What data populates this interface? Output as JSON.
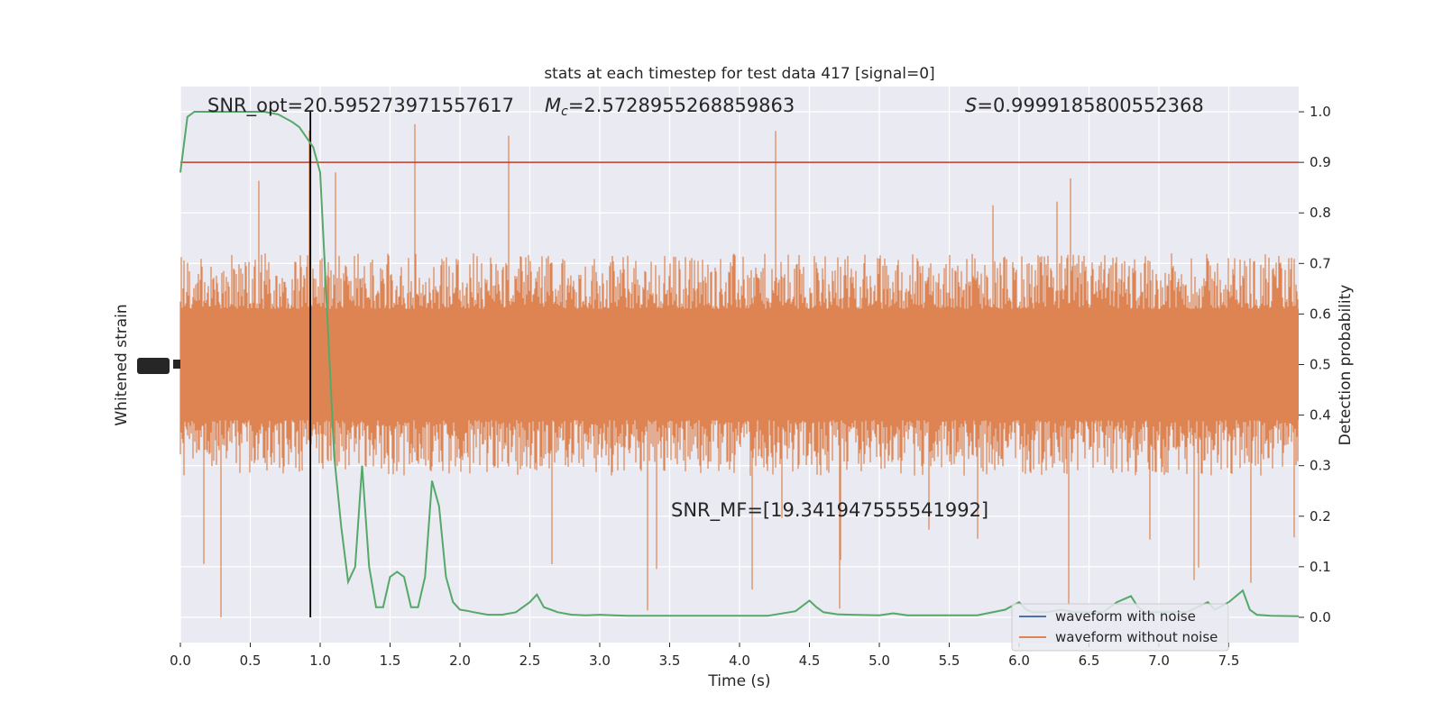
{
  "chart_data": {
    "type": "line",
    "title": "stats at each timestep for test data 417 [signal=0]",
    "xlabel": "Time (s)",
    "ylabel_left": "Whitened strain",
    "ylabel_right": "Detection probability",
    "xlim": [
      0.0,
      8.0
    ],
    "ylim_right": [
      -0.05,
      1.05
    ],
    "x_ticks": [
      "0.0",
      "0.5",
      "1.0",
      "1.5",
      "2.0",
      "2.5",
      "3.0",
      "3.5",
      "4.0",
      "4.5",
      "5.0",
      "5.5",
      "6.0",
      "6.5",
      "7.0",
      "7.5"
    ],
    "x_tick_values": [
      0.0,
      0.5,
      1.0,
      1.5,
      2.0,
      2.5,
      3.0,
      3.5,
      4.0,
      4.5,
      5.0,
      5.5,
      6.0,
      6.5,
      7.0,
      7.5
    ],
    "y_right_ticks": [
      "0.0",
      "0.1",
      "0.2",
      "0.3",
      "0.4",
      "0.5",
      "0.6",
      "0.7",
      "0.8",
      "0.9",
      "1.0"
    ],
    "y_right_tick_values": [
      0.0,
      0.1,
      0.2,
      0.3,
      0.4,
      0.5,
      0.6,
      0.7,
      0.8,
      0.9,
      1.0
    ],
    "grid": true,
    "legend_position": "bottom-right",
    "annotations": {
      "snr_opt": "SNR_opt=20.595273971557617",
      "mc_symbol": "M",
      "mc_sub": "c",
      "mc_value": "=2.5728955268859863",
      "s_symbol": "S",
      "s_value": "=0.9999185800552368",
      "snr_mf": "SNR_MF=[19.341947555541992]"
    },
    "threshold": {
      "y": 0.9,
      "color": "#c0392b"
    },
    "marker_line": {
      "x": 0.93,
      "color": "#000000"
    },
    "noise_band": {
      "color": "#dd8452",
      "core_min": 0.39,
      "core_max": 0.61,
      "envelope_min": 0.28,
      "envelope_max": 0.72,
      "spike_min": 0.0,
      "spike_max": 1.0
    },
    "series": [
      {
        "name": "waveform with noise",
        "color": "#4c72b0",
        "x": [],
        "y": []
      },
      {
        "name": "waveform without noise",
        "color": "#dd8452",
        "x": [],
        "y": []
      },
      {
        "color": "#55a868",
        "x": [
          0.0,
          0.05,
          0.1,
          0.2,
          0.3,
          0.4,
          0.5,
          0.6,
          0.7,
          0.8,
          0.85,
          0.9,
          0.95,
          1.0,
          1.05,
          1.1,
          1.15,
          1.2,
          1.25,
          1.3,
          1.35,
          1.4,
          1.45,
          1.5,
          1.55,
          1.6,
          1.65,
          1.7,
          1.75,
          1.8,
          1.85,
          1.9,
          1.95,
          2.0,
          2.05,
          2.1,
          2.2,
          2.3,
          2.4,
          2.5,
          2.55,
          2.6,
          2.65,
          2.7,
          2.8,
          2.9,
          3.0,
          3.1,
          3.2,
          3.4,
          3.6,
          3.8,
          4.0,
          4.2,
          4.4,
          4.5,
          4.55,
          4.6,
          4.7,
          4.8,
          5.0,
          5.1,
          5.2,
          5.3,
          5.5,
          5.7,
          5.9,
          6.0,
          6.05,
          6.1,
          6.2,
          6.3,
          6.4,
          6.5,
          6.6,
          6.7,
          6.8,
          6.85,
          6.9,
          7.0,
          7.2,
          7.35,
          7.4,
          7.5,
          7.6,
          7.65,
          7.7,
          7.8,
          8.0
        ],
        "y": [
          0.88,
          0.99,
          1.0,
          1.0,
          1.0,
          1.0,
          1.0,
          1.0,
          0.995,
          0.98,
          0.97,
          0.95,
          0.93,
          0.88,
          0.6,
          0.32,
          0.18,
          0.07,
          0.1,
          0.3,
          0.1,
          0.02,
          0.02,
          0.08,
          0.09,
          0.08,
          0.02,
          0.02,
          0.08,
          0.27,
          0.22,
          0.08,
          0.03,
          0.015,
          0.013,
          0.01,
          0.005,
          0.005,
          0.01,
          0.03,
          0.045,
          0.02,
          0.015,
          0.01,
          0.005,
          0.004,
          0.005,
          0.004,
          0.003,
          0.003,
          0.003,
          0.003,
          0.003,
          0.003,
          0.012,
          0.033,
          0.02,
          0.01,
          0.006,
          0.005,
          0.004,
          0.008,
          0.004,
          0.004,
          0.004,
          0.004,
          0.015,
          0.03,
          0.015,
          0.01,
          0.01,
          0.015,
          0.01,
          0.01,
          0.01,
          0.03,
          0.042,
          0.02,
          0.01,
          0.01,
          0.01,
          0.03,
          0.015,
          0.03,
          0.053,
          0.015,
          0.005,
          0.003,
          0.002
        ]
      }
    ]
  }
}
